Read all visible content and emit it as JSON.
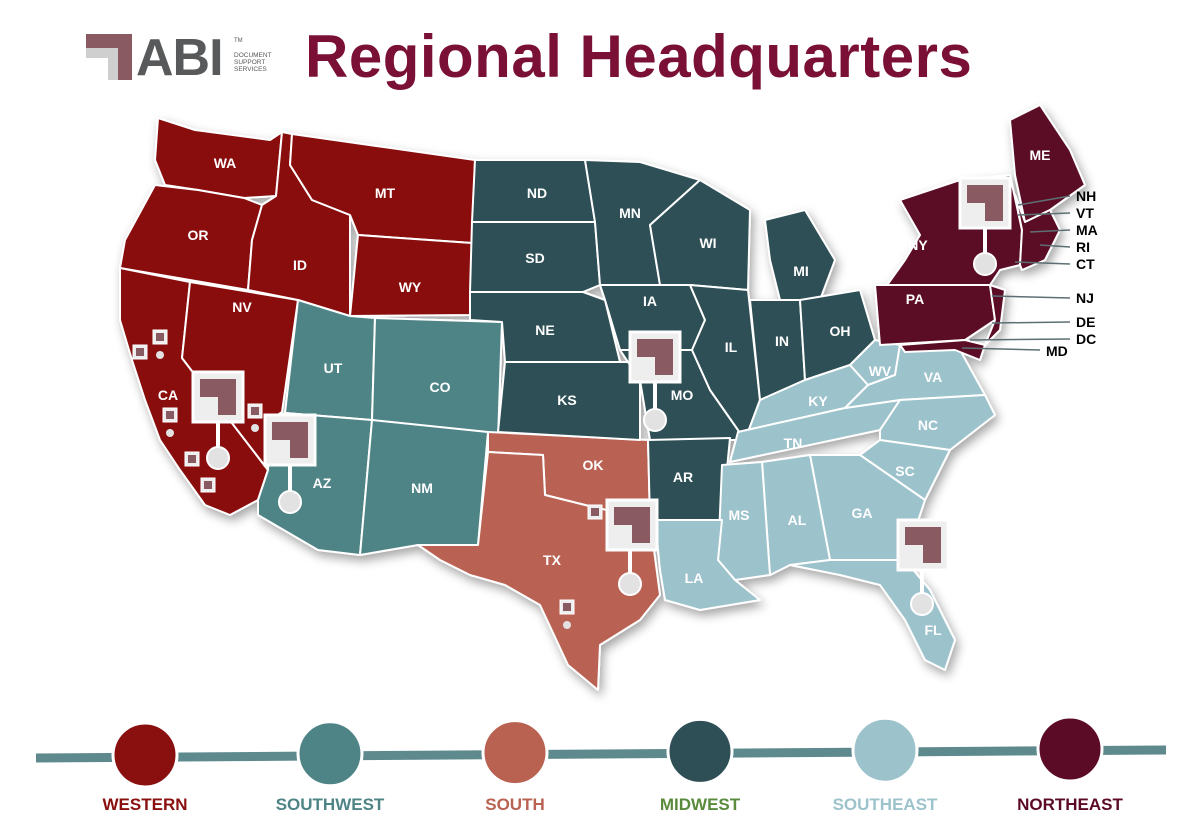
{
  "header": {
    "logo_text": "ABI",
    "logo_tm": "TM",
    "logo_subtext": "Document Support Services",
    "title": "Regional Headquarters"
  },
  "colors": {
    "western": "#8a1010",
    "southwest": "#4f8487",
    "south": "#b96252",
    "midwest": "#2d4f55",
    "southeast": "#9cc2cc",
    "northeast": "#5c0b26",
    "title": "#7a1035"
  },
  "states": {
    "WA": "WA",
    "OR": "OR",
    "CA": "CA",
    "NV": "NV",
    "ID": "ID",
    "MT": "MT",
    "WY": "WY",
    "UT": "UT",
    "CO": "CO",
    "AZ": "AZ",
    "NM": "NM",
    "TX": "TX",
    "OK": "OK",
    "ND": "ND",
    "SD": "SD",
    "NE": "NE",
    "KS": "KS",
    "MN": "MN",
    "IA": "IA",
    "MO": "MO",
    "WI": "WI",
    "IL": "IL",
    "MI": "MI",
    "IN": "IN",
    "OH": "OH",
    "AR": "AR",
    "KY": "KY",
    "TN": "TN",
    "MS": "MS",
    "AL": "AL",
    "GA": "GA",
    "FL": "FL",
    "SC": "SC",
    "NC": "NC",
    "VA": "VA",
    "WV": "WV",
    "LA": "LA",
    "ME": "ME",
    "NY": "NY",
    "PA": "PA",
    "NH": "NH",
    "VT": "VT",
    "MA": "MA",
    "RI": "RI",
    "CT": "CT",
    "NJ": "NJ",
    "DE": "DE",
    "DC": "DC",
    "MD": "MD"
  },
  "legend": [
    {
      "label": "WESTERN",
      "color": "#8a1010",
      "text_color": "#8a1010"
    },
    {
      "label": "SOUTHWEST",
      "color": "#4f8487",
      "text_color": "#4f8487"
    },
    {
      "label": "SOUTH",
      "color": "#b96252",
      "text_color": "#b96252"
    },
    {
      "label": "MIDWEST",
      "color": "#2d4f55",
      "text_color": "#5a8a3c"
    },
    {
      "label": "SOUTHEAST",
      "color": "#9cc2cc",
      "text_color": "#9cc2cc"
    },
    {
      "label": "NORTHEAST",
      "color": "#5c0b26",
      "text_color": "#5c0b26"
    }
  ]
}
